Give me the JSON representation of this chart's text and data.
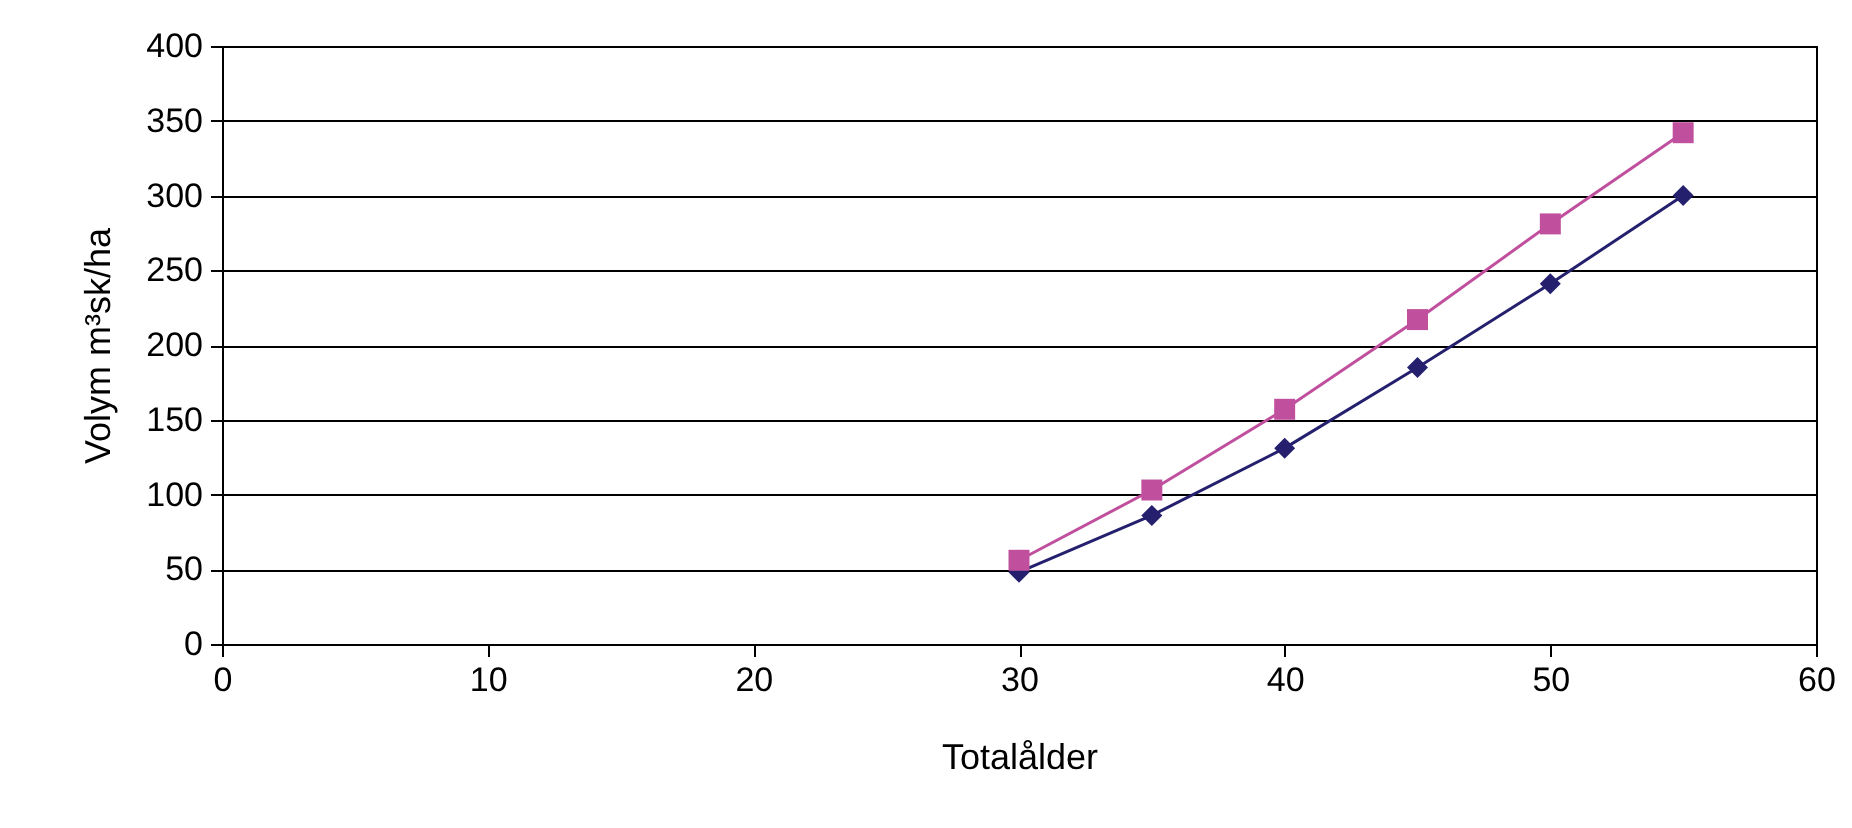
{
  "chart_data": {
    "type": "line",
    "xlabel": "Totalålder",
    "ylabel": "Volym m³sk/ha",
    "x": [
      30,
      35,
      40,
      45,
      50,
      55
    ],
    "series": [
      {
        "color": "#25206e",
        "marker": "diamond",
        "values": [
          48,
          86,
          131,
          185,
          241,
          300
        ]
      },
      {
        "color": "#c0509e",
        "marker": "square",
        "values": [
          56,
          103,
          157,
          217,
          281,
          342
        ]
      }
    ],
    "xlim": [
      0,
      60
    ],
    "xticks": [
      0,
      10,
      20,
      30,
      40,
      50,
      60
    ],
    "ylim": [
      0,
      400
    ],
    "yticks": [
      0,
      50,
      100,
      150,
      200,
      250,
      300,
      350,
      400
    ],
    "grid": "y",
    "line_style": "solid"
  }
}
